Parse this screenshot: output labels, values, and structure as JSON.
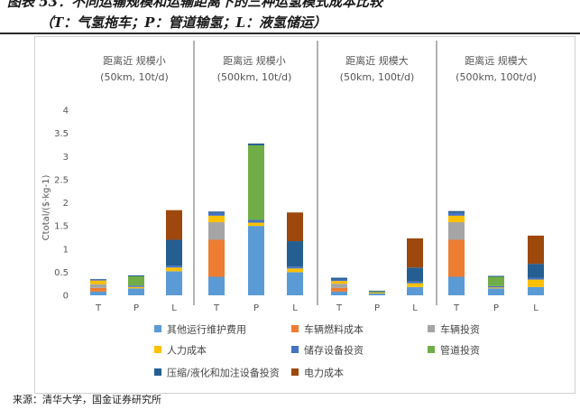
{
  "header": {
    "title_line1": "图表 53：不同运输规模和运输距离下的三种运氢模式成本比较",
    "title_line2": "（T：气氢拖车；P：管道输氢；L：液氢储运）"
  },
  "footer": {
    "source": "来源：清华大学，国金证券研究所"
  },
  "chart_data": {
    "type": "bar",
    "stacked": true,
    "ylabel": "Ctotal/($·kg-1)",
    "ylim": [
      0,
      4
    ],
    "yticks": [
      "0",
      "0.5",
      "1",
      "1.5",
      "2",
      "2.5",
      "3",
      "3.5",
      "4"
    ],
    "grid": false,
    "legend_position": "bottom",
    "groups": [
      {
        "label_line1": "距离近  规模小",
        "label_line2": "(50km, 10t/d)"
      },
      {
        "label_line1": "距离远  规模小",
        "label_line2": "(500km, 10t/d)"
      },
      {
        "label_line1": "距离近  规模大",
        "label_line2": "(50km, 100t/d)"
      },
      {
        "label_line1": "距离远  规模大",
        "label_line2": "(500km, 100t/d)"
      }
    ],
    "categories": [
      "T",
      "P",
      "L",
      "T",
      "P",
      "L",
      "T",
      "P",
      "L",
      "T",
      "P",
      "L"
    ],
    "series": [
      {
        "name": "其他运行维护费用",
        "color": "#5B9BD5",
        "values": [
          0.08,
          0.15,
          0.52,
          0.4,
          1.5,
          0.5,
          0.08,
          0.04,
          0.18,
          0.4,
          0.15,
          0.18
        ]
      },
      {
        "name": "车辆燃料成本",
        "color": "#ED7D31",
        "values": [
          0.08,
          0,
          0,
          0.8,
          0,
          0,
          0.08,
          0,
          0,
          0.8,
          0,
          0
        ]
      },
      {
        "name": "车辆投资",
        "color": "#A5A5A5",
        "values": [
          0.08,
          0,
          0,
          0.38,
          0,
          0,
          0.09,
          0,
          0,
          0.38,
          0,
          0
        ]
      },
      {
        "name": "人力成本",
        "color": "#FFC000",
        "values": [
          0.08,
          0.03,
          0.08,
          0.14,
          0.07,
          0.08,
          0.06,
          0.02,
          0.08,
          0.14,
          0.02,
          0.16
        ]
      },
      {
        "name": "储存设备投资",
        "color": "#4472C4",
        "values": [
          0.02,
          0.03,
          0.04,
          0.06,
          0.06,
          0.04,
          0.03,
          0.01,
          0.04,
          0.06,
          0.03,
          0.04
        ]
      },
      {
        "name": "管道投资",
        "color": "#70AD47",
        "values": [
          0,
          0.2,
          0,
          0,
          1.61,
          0,
          0,
          0.02,
          0,
          0,
          0.2,
          0
        ]
      },
      {
        "name": "压缩/液化和加注设备投资",
        "color": "#255E91",
        "values": [
          0.01,
          0.02,
          0.56,
          0.03,
          0.04,
          0.55,
          0.04,
          0.01,
          0.3,
          0.04,
          0.02,
          0.3
        ]
      },
      {
        "name": "电力成本",
        "color": "#9E480E",
        "values": [
          0,
          0,
          0.64,
          0,
          0,
          0.62,
          0,
          0,
          0.63,
          0,
          0,
          0.61
        ]
      }
    ]
  }
}
